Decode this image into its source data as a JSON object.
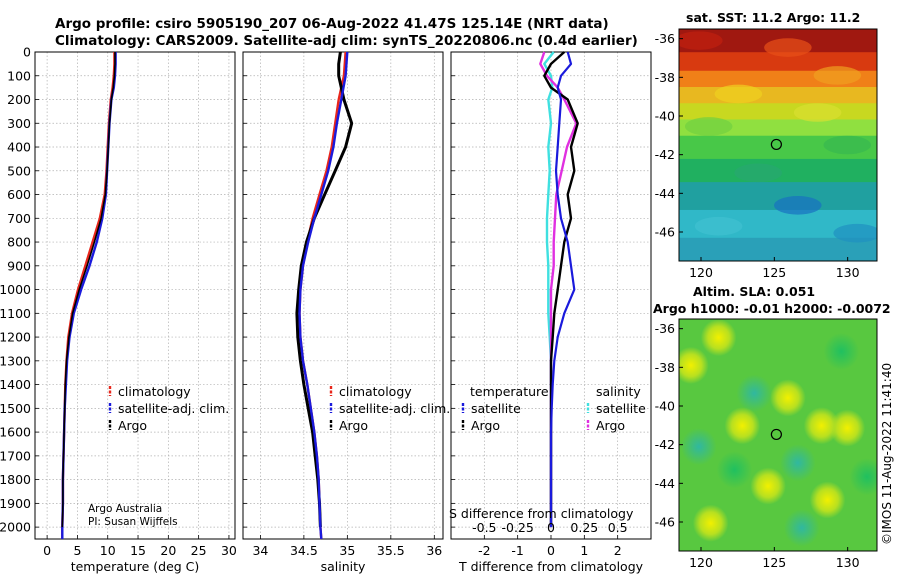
{
  "header": {
    "line1": "Argo profile: csiro 5905190_207 06-Aug-2022 41.47S 125.14E (NRT data)",
    "line2": "Climatology: CARS2009. Satellite-adj clim: synTS_20220806.nc (0.4d earlier)"
  },
  "credit": {
    "line1": "Argo Australia",
    "line2": "PI: Susan Wijffels"
  },
  "stamp": "©IMOS 11-Aug-2022 11:41:40",
  "colors": {
    "climatology": "#e8261b",
    "satellite": "#1a1adc",
    "argo": "#000000",
    "sal_satellite": "#3fe0e0",
    "sal_argo": "#e030e0",
    "grid": "#b0b0b0"
  },
  "chart_data": [
    {
      "type": "line",
      "id": "temperature",
      "xlabel": "temperature (deg C)",
      "ylabel": "",
      "xlim": [
        -2,
        31
      ],
      "ylim": [
        0,
        2050
      ],
      "xticks": [
        0,
        5,
        10,
        15,
        20,
        25,
        30
      ],
      "yticks": [
        0,
        100,
        200,
        300,
        400,
        500,
        600,
        700,
        800,
        900,
        1000,
        1100,
        1200,
        1300,
        1400,
        1500,
        1600,
        1700,
        1800,
        1900,
        2000
      ],
      "legend": [
        "climatology",
        "satellite-adj. clim.",
        "Argo"
      ],
      "series": [
        {
          "name": "climatology",
          "depth": [
            0,
            50,
            100,
            150,
            200,
            300,
            400,
            500,
            600,
            700,
            800,
            900,
            1000,
            1100,
            1200,
            1300,
            1400,
            1500,
            1600,
            1700,
            1800,
            1900,
            2000,
            2050
          ],
          "values": [
            11.1,
            11.1,
            11.0,
            10.8,
            10.5,
            10.2,
            10.0,
            9.8,
            9.5,
            8.7,
            7.5,
            6.3,
            5.1,
            4.1,
            3.5,
            3.2,
            3.0,
            2.9,
            2.8,
            2.7,
            2.6,
            2.6,
            2.5,
            2.5
          ]
        },
        {
          "name": "satellite-adj. clim.",
          "depth": [
            0,
            50,
            100,
            150,
            200,
            300,
            400,
            500,
            600,
            700,
            800,
            900,
            1000,
            1100,
            1200,
            1300,
            1400,
            1500,
            1600,
            1700,
            1800,
            1900,
            2000,
            2050
          ],
          "values": [
            11.3,
            11.3,
            11.2,
            11.0,
            10.6,
            10.3,
            10.1,
            9.9,
            9.7,
            9.1,
            8.2,
            7.0,
            5.6,
            4.4,
            3.7,
            3.3,
            3.1,
            2.9,
            2.8,
            2.7,
            2.6,
            2.6,
            2.5,
            2.5
          ]
        },
        {
          "name": "Argo",
          "depth": [
            0,
            50,
            100,
            150,
            200,
            300,
            400,
            500,
            600,
            700,
            800,
            900,
            1000,
            1100,
            1200,
            1300,
            1400,
            1500,
            1600,
            1700,
            1800,
            1900,
            2000
          ],
          "values": [
            11.2,
            11.2,
            11.1,
            10.9,
            10.6,
            10.3,
            10.1,
            9.9,
            9.6,
            8.9,
            7.8,
            6.6,
            5.3,
            4.2,
            3.6,
            3.2,
            3.0,
            2.9,
            2.8,
            2.7,
            2.6,
            2.6,
            2.5
          ]
        }
      ]
    },
    {
      "type": "line",
      "id": "salinity",
      "xlabel": "salinity",
      "xlim": [
        33.8,
        36.1
      ],
      "ylim": [
        0,
        2050
      ],
      "xticks": [
        34,
        34.5,
        35,
        35.5,
        36
      ],
      "legend": [
        "climatology",
        "satellite-adj. clim.",
        "Argo"
      ],
      "series": [
        {
          "name": "climatology",
          "depth": [
            0,
            100,
            200,
            300,
            400,
            500,
            600,
            700,
            800,
            900,
            1000,
            1100,
            1200,
            1300,
            1400,
            1500,
            1600,
            1700,
            1800,
            1900,
            2000,
            2050
          ],
          "values": [
            34.98,
            34.96,
            34.9,
            34.86,
            34.82,
            34.76,
            34.68,
            34.6,
            34.54,
            34.49,
            34.46,
            34.45,
            34.46,
            34.49,
            34.54,
            34.58,
            34.62,
            34.65,
            34.67,
            34.68,
            34.69,
            34.7
          ]
        },
        {
          "name": "satellite-adj. clim.",
          "depth": [
            0,
            100,
            200,
            300,
            400,
            500,
            600,
            700,
            800,
            900,
            1000,
            1100,
            1200,
            1300,
            1400,
            1500,
            1600,
            1700,
            1800,
            1900,
            2000,
            2050
          ],
          "values": [
            35.0,
            34.98,
            34.93,
            34.88,
            34.84,
            34.78,
            34.7,
            34.62,
            34.55,
            34.49,
            34.46,
            34.45,
            34.46,
            34.49,
            34.54,
            34.58,
            34.62,
            34.65,
            34.67,
            34.68,
            34.69,
            34.7
          ]
        },
        {
          "name": "Argo",
          "depth": [
            0,
            50,
            100,
            150,
            200,
            300,
            400,
            500,
            600,
            700,
            800,
            900,
            1000,
            1100,
            1200,
            1300,
            1400,
            1500,
            1600,
            1700,
            1800,
            1900,
            2000
          ],
          "values": [
            34.92,
            34.9,
            34.9,
            34.93,
            34.96,
            35.05,
            34.98,
            34.86,
            34.74,
            34.62,
            34.53,
            34.47,
            34.44,
            34.42,
            34.43,
            34.46,
            34.5,
            34.55,
            34.6,
            34.63,
            34.66,
            34.68,
            34.69
          ]
        }
      ]
    },
    {
      "type": "line",
      "id": "difference",
      "xlabel": "T difference from climatology",
      "xlabel_top": "S difference from climatology",
      "xlim": [
        -3,
        3
      ],
      "ylim": [
        0,
        2050
      ],
      "xticks": [
        -2,
        -1,
        0,
        1,
        2
      ],
      "xticks_top": [
        -0.5,
        -0.25,
        0,
        0.25,
        0.5
      ],
      "legend_temperature": {
        "title": "temperature",
        "items": [
          "satellite",
          "Argo"
        ]
      },
      "legend_salinity": {
        "title": "salinity",
        "items": [
          "satellite",
          "Argo"
        ]
      },
      "series": [
        {
          "name": "T satellite",
          "depth": [
            0,
            50,
            100,
            150,
            200,
            300,
            400,
            500,
            600,
            700,
            800,
            900,
            1000,
            1100,
            1200,
            1300,
            1400,
            1500,
            1600,
            1700,
            1800,
            1900,
            2000
          ],
          "values": [
            0.5,
            0.6,
            0.3,
            0.2,
            0.3,
            0.25,
            0.2,
            0.15,
            0.2,
            0.3,
            0.5,
            0.6,
            0.7,
            0.4,
            0.2,
            0.1,
            0.05,
            0.02,
            0.0,
            0.0,
            0.0,
            0.0,
            0.0
          ]
        },
        {
          "name": "T Argo",
          "depth": [
            0,
            50,
            100,
            150,
            200,
            300,
            400,
            500,
            600,
            700,
            800,
            900,
            1000,
            1100,
            1200,
            1300,
            1400,
            1500,
            1600,
            1700,
            1800,
            1900,
            2000
          ],
          "values": [
            0.4,
            0.0,
            -0.2,
            0.0,
            0.5,
            0.8,
            0.6,
            0.7,
            0.5,
            0.6,
            0.4,
            0.3,
            0.2,
            0.1,
            0.05,
            0.0,
            0.0,
            0.0,
            0.0,
            0.0,
            0.0,
            0.0,
            0.0
          ]
        },
        {
          "name": "S satellite",
          "depth": [
            0,
            50,
            100,
            150,
            200,
            300,
            400,
            500,
            600,
            700,
            800,
            900,
            1000,
            1100,
            1200,
            1300,
            1400,
            1500,
            1600,
            1700,
            1800,
            1900,
            2000
          ],
          "values": [
            0.02,
            -0.05,
            0.0,
            0.01,
            -0.02,
            0.0,
            -0.02,
            -0.01,
            -0.02,
            -0.03,
            -0.03,
            -0.02,
            -0.02,
            -0.02,
            -0.01,
            0.0,
            0.0,
            0.0,
            0.0,
            0.0,
            0.0,
            0.0,
            0.0
          ]
        },
        {
          "name": "S Argo",
          "depth": [
            0,
            50,
            100,
            150,
            200,
            300,
            400,
            500,
            600,
            700,
            800,
            900,
            1000,
            1100,
            1200,
            1300,
            1400,
            1500,
            1600,
            1700,
            1800,
            1900,
            2000
          ],
          "values": [
            -0.05,
            -0.08,
            -0.03,
            0.05,
            0.1,
            0.19,
            0.12,
            0.08,
            0.04,
            0.03,
            0.02,
            0.02,
            0.0,
            0.0,
            0.0,
            0.0,
            0.0,
            0.0,
            0.0,
            0.0,
            0.0,
            0.0,
            0.0
          ]
        }
      ]
    },
    {
      "type": "heatmap",
      "id": "sst-map",
      "title": "sat. SST: 11.2 Argo: 11.2",
      "xlim": [
        118.5,
        132
      ],
      "ylim": [
        -47.5,
        -35.5
      ],
      "xticks": [
        120,
        125,
        130
      ],
      "yticks": [
        -36,
        -38,
        -40,
        -42,
        -44,
        -46
      ],
      "marker": {
        "lon": 125.14,
        "lat": -41.47
      }
    },
    {
      "type": "heatmap",
      "id": "sla-map",
      "title1": "Altim. SLA: 0.051",
      "title2": "Argo h1000: -0.01 h2000: -0.0072",
      "xlim": [
        118.5,
        132
      ],
      "ylim": [
        -47.5,
        -35.5
      ],
      "xticks": [
        120,
        125,
        130
      ],
      "yticks": [
        -36,
        -38,
        -40,
        -42,
        -44,
        -46
      ],
      "marker": {
        "lon": 125.14,
        "lat": -41.47
      }
    }
  ]
}
